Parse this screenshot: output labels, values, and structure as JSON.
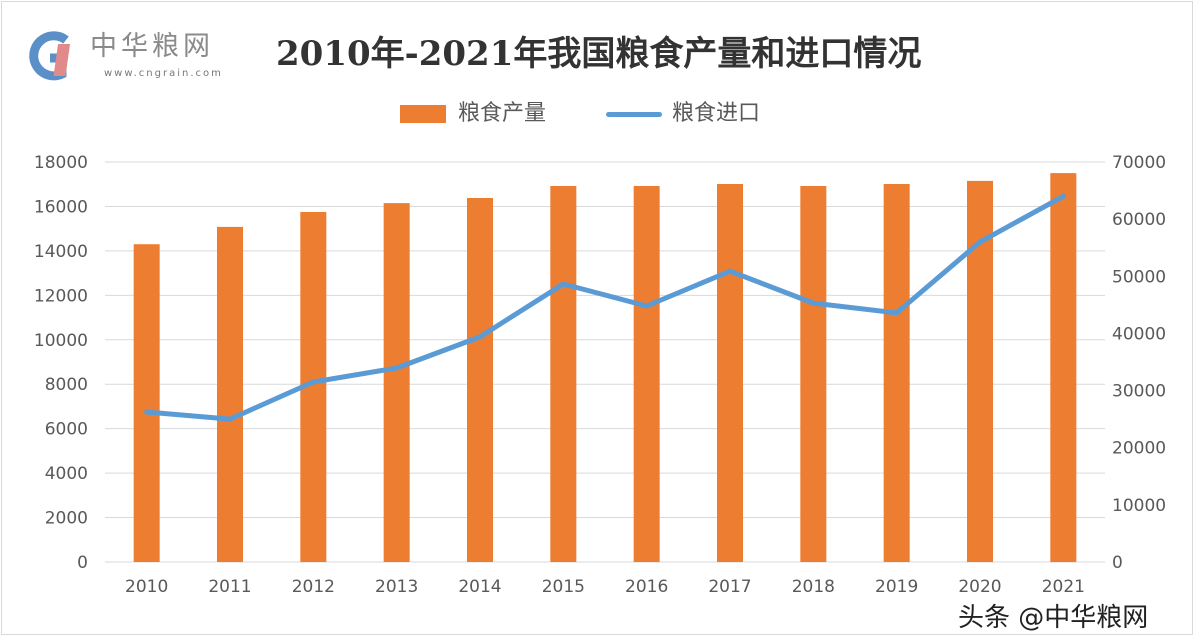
{
  "logo": {
    "name": "中华粮网",
    "url": "www.cngrain.com"
  },
  "watermark": "头条 @中华粮网",
  "chart_data": {
    "type": "bar+line",
    "title": "2010年-2021年我国粮食产量和进口情况",
    "categories": [
      "2010",
      "2011",
      "2012",
      "2013",
      "2014",
      "2015",
      "2016",
      "2017",
      "2018",
      "2019",
      "2020",
      "2021"
    ],
    "series": [
      {
        "name": "粮食产量",
        "type": "bar",
        "axis": "left",
        "color": "#ed7d31",
        "values": [
          14300,
          15080,
          15750,
          16150,
          16380,
          16920,
          16920,
          17010,
          16920,
          17010,
          17150,
          17500
        ]
      },
      {
        "name": "粮食进口",
        "type": "line",
        "axis": "right",
        "color": "#5b9bd5",
        "values": [
          26250,
          25000,
          31500,
          33950,
          39400,
          48650,
          44800,
          50900,
          45300,
          43600,
          56000,
          64000
        ]
      }
    ],
    "left_axis": {
      "min": 0,
      "max": 18000,
      "step": 2000,
      "ticks": [
        "0",
        "2000",
        "4000",
        "6000",
        "8000",
        "10000",
        "12000",
        "14000",
        "16000",
        "18000"
      ]
    },
    "right_axis": {
      "min": 0,
      "max": 70000,
      "step": 10000,
      "ticks": [
        "0",
        "10000",
        "20000",
        "30000",
        "40000",
        "50000",
        "60000",
        "70000"
      ]
    },
    "grid": true,
    "legend_position": "top"
  }
}
